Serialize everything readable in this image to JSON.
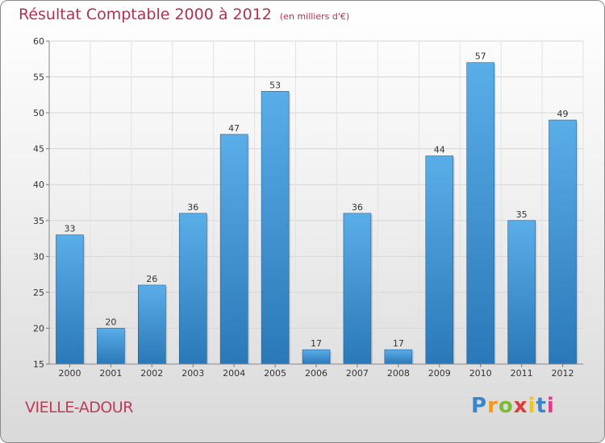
{
  "chart_data": {
    "type": "bar",
    "title": "Résultat Comptable 2000 à 2012",
    "unit_note": "(en milliers d'€)",
    "categories": [
      "2000",
      "2001",
      "2002",
      "2003",
      "2004",
      "2005",
      "2006",
      "2007",
      "2008",
      "2009",
      "2010",
      "2011",
      "2012"
    ],
    "values": [
      33,
      20,
      26,
      36,
      47,
      53,
      17,
      36,
      17,
      44,
      57,
      35,
      49
    ],
    "ylim": [
      15,
      60
    ],
    "yticks": [
      15,
      20,
      25,
      30,
      35,
      40,
      45,
      50,
      55,
      60
    ],
    "grid": true,
    "xlabel": "",
    "ylabel": ""
  },
  "commune": "VIELLE-ADOUR",
  "logo": {
    "letters": [
      "P",
      "r",
      "o",
      "x",
      "i",
      "t",
      "i"
    ],
    "colors": [
      "#3a86c8",
      "#f29a1e",
      "#7dbb2f",
      "#e03a3a",
      "#f2c21e",
      "#3a86c8",
      "#e03a8a"
    ]
  },
  "colors": {
    "title": "#b0324e",
    "bar_top": "#5aaee8",
    "bar_bottom": "#2a78b8"
  }
}
